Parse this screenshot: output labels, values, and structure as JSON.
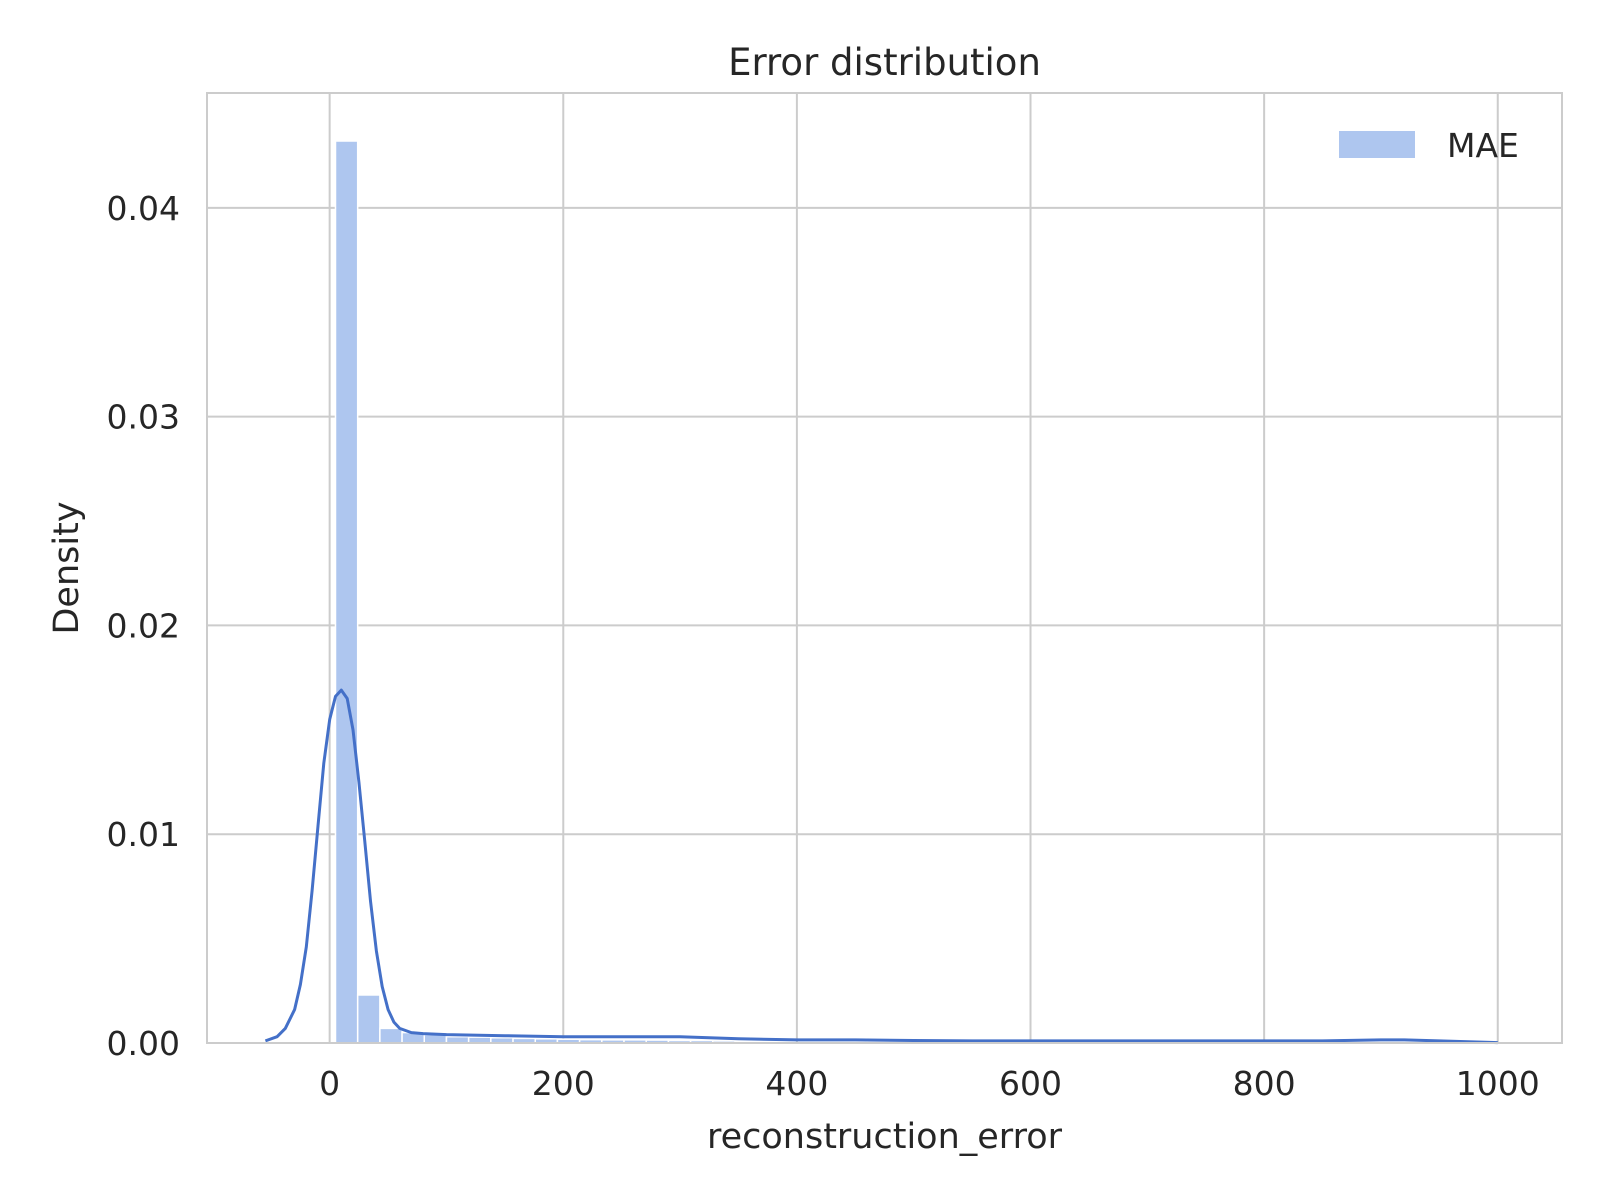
{
  "chart_data": {
    "type": "histogram",
    "title": "Error distribution",
    "xlabel": "reconstruction_error",
    "ylabel": "Density",
    "xlim": [
      -105,
      1055
    ],
    "ylim": [
      0,
      0.0455
    ],
    "xticks": [
      0,
      200,
      400,
      600,
      800,
      1000
    ],
    "xtick_labels": [
      "0",
      "200",
      "400",
      "600",
      "800",
      "1000"
    ],
    "yticks": [
      0,
      0.01,
      0.02,
      0.03,
      0.04
    ],
    "ytick_labels": [
      "0.00",
      "0.01",
      "0.02",
      "0.03",
      "0.04"
    ],
    "grid": true,
    "legend": {
      "position": "top-right",
      "entries": [
        "MAE"
      ]
    },
    "colors": {
      "bar": "#aec6ef",
      "kde": "#4470c8",
      "grid": "#cccccc",
      "spine": "#cccccc"
    },
    "histogram": {
      "bin_start": 5,
      "bin_width": 19.0,
      "densities": [
        0.0432,
        0.0023,
        0.0007,
        0.0005,
        0.0004,
        0.0003,
        0.00028,
        0.00025,
        0.00022,
        0.0002,
        0.00018,
        0.00016,
        0.00015,
        0.00015,
        0.00014,
        0.00012,
        0.00012,
        0.0001
      ]
    },
    "kde": {
      "x": [
        -55,
        -45,
        -38,
        -30,
        -25,
        -20,
        -15,
        -10,
        -5,
        0,
        5,
        10,
        15,
        20,
        25,
        30,
        35,
        40,
        45,
        50,
        55,
        60,
        70,
        80,
        100,
        150,
        200,
        250,
        300,
        350,
        400,
        450,
        500,
        550,
        600,
        700,
        800,
        850,
        900,
        920,
        950,
        1000
      ],
      "y": [
        0.0001,
        0.0003,
        0.0007,
        0.0016,
        0.0028,
        0.0046,
        0.0073,
        0.0104,
        0.0134,
        0.0155,
        0.0166,
        0.0169,
        0.0165,
        0.015,
        0.0125,
        0.0097,
        0.0068,
        0.0044,
        0.0027,
        0.0016,
        0.001,
        0.0007,
        0.0005,
        0.00045,
        0.0004,
        0.00035,
        0.0003,
        0.0003,
        0.0003,
        0.0002,
        0.00015,
        0.00015,
        0.00012,
        0.0001,
        0.0001,
        0.0001,
        0.0001,
        0.0001,
        0.00015,
        0.00015,
        0.0001,
        2e-05
      ]
    }
  }
}
